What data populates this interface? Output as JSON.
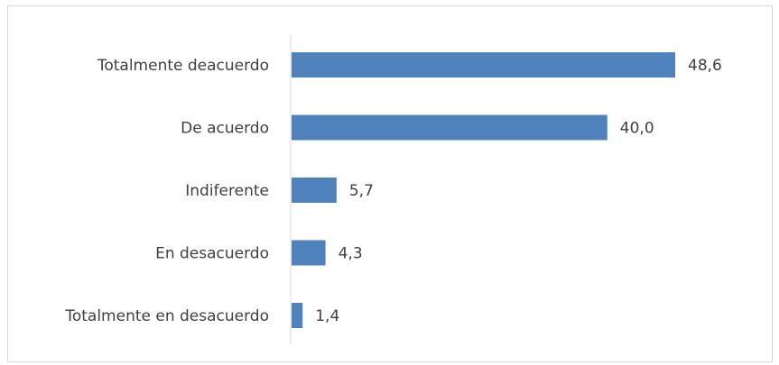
{
  "chart_data": {
    "type": "bar",
    "orientation": "horizontal",
    "categories": [
      "Totalmente deacuerdo",
      "De acuerdo",
      "Indiferente",
      "En desacuerdo",
      "Totalmente en desacuerdo"
    ],
    "values": [
      48.6,
      40.0,
      5.7,
      4.3,
      1.4
    ],
    "value_labels": [
      "48,6",
      "40,0",
      "5,7",
      "4,3",
      "1,4"
    ],
    "title": "",
    "xlabel": "",
    "ylabel": "",
    "xlim": [
      0,
      60
    ],
    "grid": false,
    "legend": "none",
    "bar_color": "#4F81BD",
    "axis_color": "#d9d9d9",
    "text_color": "#404040"
  }
}
